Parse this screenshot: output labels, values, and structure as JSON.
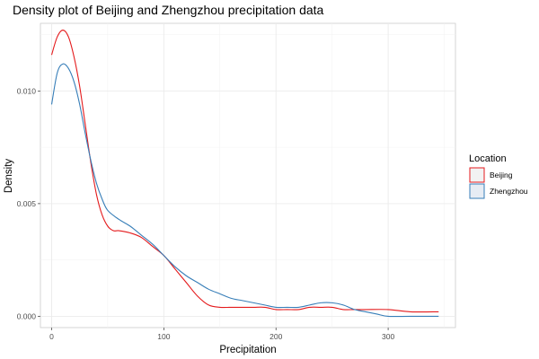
{
  "chart_data": {
    "type": "line",
    "title": "Density plot of Beijing and Zhengzhou precipitation data",
    "xlabel": "Precipitation",
    "ylabel": "Density",
    "xlim": [
      -10,
      360
    ],
    "ylim": [
      -0.0005,
      0.013
    ],
    "x_ticks": [
      0,
      100,
      200,
      300
    ],
    "y_ticks": [
      0.0,
      0.005,
      0.01
    ],
    "x_tick_labels": [
      "0",
      "100",
      "200",
      "300"
    ],
    "y_tick_labels": [
      "0.000",
      "0.005",
      "0.010"
    ],
    "grid": true,
    "legend_position": "right",
    "legend_title": "Location",
    "series": [
      {
        "name": "Beijing",
        "color": "#e41a1c",
        "fill": "#f2f2f2",
        "points": [
          [
            0,
            0.0116
          ],
          [
            5,
            0.0124
          ],
          [
            10,
            0.0127
          ],
          [
            15,
            0.0124
          ],
          [
            20,
            0.0115
          ],
          [
            25,
            0.0102
          ],
          [
            30,
            0.0085
          ],
          [
            35,
            0.0068
          ],
          [
            40,
            0.0054
          ],
          [
            45,
            0.0045
          ],
          [
            50,
            0.004
          ],
          [
            55,
            0.0038
          ],
          [
            60,
            0.0038
          ],
          [
            70,
            0.0037
          ],
          [
            80,
            0.0035
          ],
          [
            90,
            0.0031
          ],
          [
            100,
            0.0027
          ],
          [
            110,
            0.0021
          ],
          [
            120,
            0.0015
          ],
          [
            130,
            0.0009
          ],
          [
            140,
            0.0005
          ],
          [
            150,
            0.0004
          ],
          [
            160,
            0.0004
          ],
          [
            170,
            0.0004
          ],
          [
            180,
            0.0004
          ],
          [
            190,
            0.0004
          ],
          [
            200,
            0.0003
          ],
          [
            210,
            0.0003
          ],
          [
            220,
            0.0003
          ],
          [
            230,
            0.0004
          ],
          [
            240,
            0.0004
          ],
          [
            250,
            0.0004
          ],
          [
            260,
            0.0003
          ],
          [
            270,
            0.0003
          ],
          [
            280,
            0.0003
          ],
          [
            300,
            0.0003
          ],
          [
            320,
            0.0002
          ],
          [
            345,
            0.0002
          ]
        ]
      },
      {
        "name": "Zhengzhou",
        "color": "#377eb8",
        "fill": "#e6ecf4",
        "points": [
          [
            0,
            0.0094
          ],
          [
            5,
            0.0108
          ],
          [
            10,
            0.0112
          ],
          [
            15,
            0.011
          ],
          [
            20,
            0.0104
          ],
          [
            25,
            0.0094
          ],
          [
            30,
            0.0081
          ],
          [
            35,
            0.0069
          ],
          [
            40,
            0.0059
          ],
          [
            45,
            0.0052
          ],
          [
            50,
            0.0047
          ],
          [
            60,
            0.0043
          ],
          [
            70,
            0.004
          ],
          [
            80,
            0.0036
          ],
          [
            90,
            0.0032
          ],
          [
            100,
            0.0027
          ],
          [
            110,
            0.0022
          ],
          [
            120,
            0.0018
          ],
          [
            130,
            0.0015
          ],
          [
            140,
            0.0012
          ],
          [
            150,
            0.001
          ],
          [
            160,
            0.0008
          ],
          [
            170,
            0.0007
          ],
          [
            180,
            0.0006
          ],
          [
            190,
            0.0005
          ],
          [
            200,
            0.0004
          ],
          [
            210,
            0.0004
          ],
          [
            220,
            0.0004
          ],
          [
            230,
            0.0005
          ],
          [
            240,
            0.0006
          ],
          [
            250,
            0.0006
          ],
          [
            260,
            0.0005
          ],
          [
            270,
            0.0003
          ],
          [
            280,
            0.0002
          ],
          [
            290,
            0.0001
          ],
          [
            300,
            0.0
          ],
          [
            320,
            0.0
          ],
          [
            345,
            0.0
          ]
        ]
      }
    ]
  }
}
